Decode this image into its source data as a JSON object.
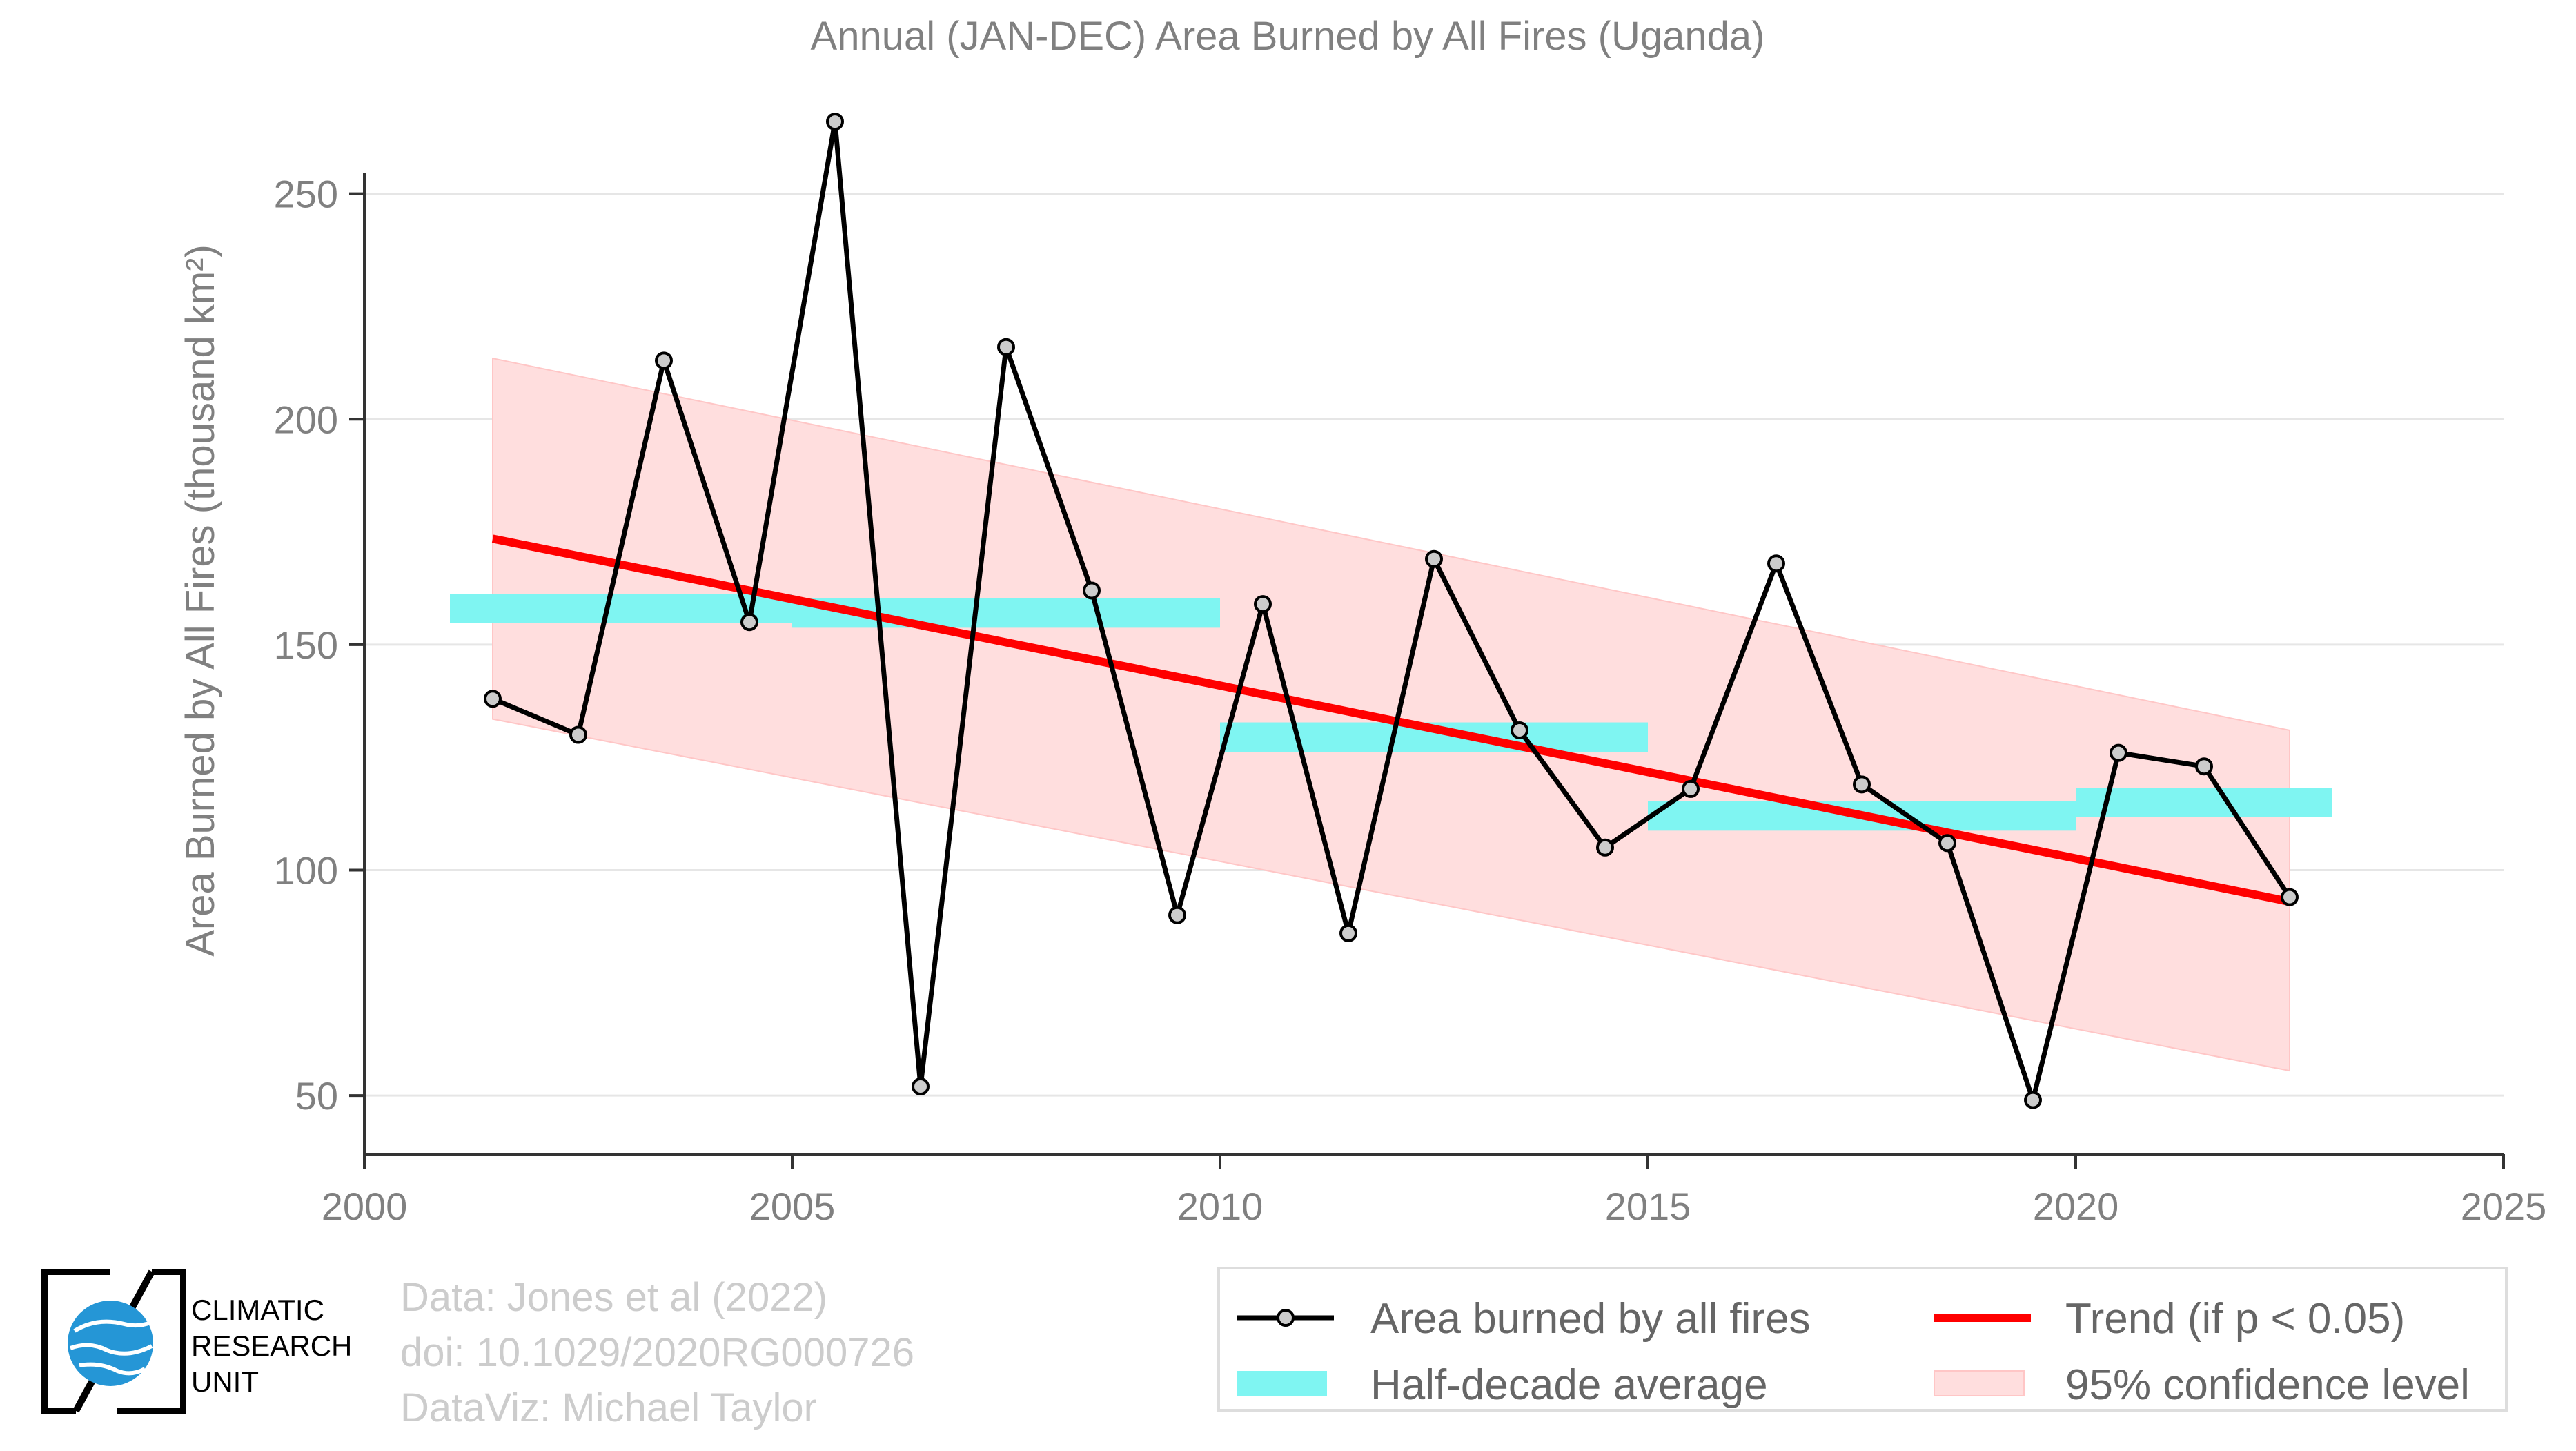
{
  "chart_data": {
    "type": "line",
    "title": "Annual (JAN-DEC) Area Burned by All Fires (Uganda)",
    "ylabel": "Area Burned by All Fires (thousand km²)",
    "xlabel": "",
    "xlim": [
      2000,
      2025
    ],
    "ylim": [
      37,
      270
    ],
    "xticks": [
      2000,
      2005,
      2010,
      2015,
      2020,
      2025
    ],
    "yticks": [
      50,
      100,
      150,
      200,
      250
    ],
    "grid": "horizontal",
    "legend_position": "bottom-right",
    "series": [
      {
        "name": "Area burned by all fires",
        "kind": "line-marker",
        "color": "#000000",
        "x": [
          2001.5,
          2002.5,
          2003.5,
          2004.5,
          2005.5,
          2006.5,
          2007.5,
          2008.5,
          2009.5,
          2010.5,
          2011.5,
          2012.5,
          2013.5,
          2014.5,
          2015.5,
          2016.5,
          2017.5,
          2018.5,
          2019.5,
          2020.5,
          2021.5,
          2022.5
        ],
        "values": [
          138,
          130,
          213,
          155,
          266,
          52,
          216,
          162,
          90,
          159,
          86,
          169,
          131,
          105,
          118,
          168,
          119,
          106,
          49,
          126,
          123,
          94
        ]
      },
      {
        "name": "Half-decade average",
        "kind": "segments",
        "color": "#7ff5f2",
        "segments": [
          {
            "x0": 2001,
            "x1": 2005,
            "value": 158
          },
          {
            "x0": 2005,
            "x1": 2010,
            "value": 157
          },
          {
            "x0": 2010,
            "x1": 2015,
            "value": 129.5
          },
          {
            "x0": 2015,
            "x1": 2020,
            "value": 112
          },
          {
            "x0": 2020,
            "x1": 2023,
            "value": 115
          }
        ]
      },
      {
        "name": "Trend (if p < 0.05)",
        "kind": "line",
        "color": "#ff0000",
        "x": [
          2001.5,
          2022.5
        ],
        "values": [
          173.5,
          93
        ]
      },
      {
        "name": "95% confidence level",
        "kind": "band",
        "color": "#ffdede",
        "x": [
          2001.5,
          2022.5
        ],
        "upper": [
          213.5,
          131
        ],
        "lower": [
          133.5,
          55.5
        ]
      }
    ]
  },
  "footer": {
    "line1": "Data: Jones et al (2022)",
    "line2": "doi: 10.1029/2020RG000726",
    "line3": "DataViz: Michael Taylor"
  },
  "logo": {
    "line1": "CLIMATIC",
    "line2": "RESEARCH",
    "line3": "UNIT"
  },
  "colors": {
    "axis_text": "#808080",
    "grid": "#e6e6e6"
  }
}
